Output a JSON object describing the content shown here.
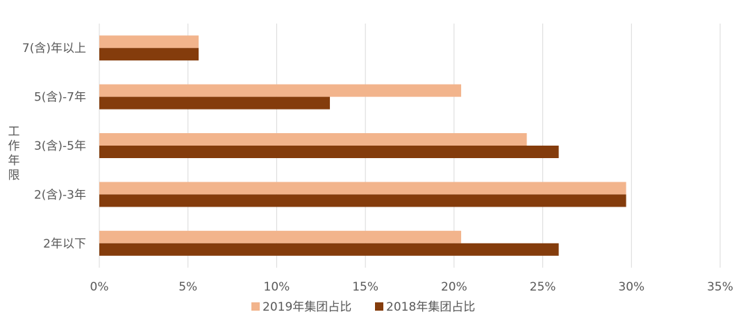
{
  "chart_data": {
    "type": "bar",
    "orientation": "horizontal",
    "categories": [
      "7(含)年以上",
      "5(含)-7年",
      "3(含)-5年",
      "2(含)-3年",
      "2年以下"
    ],
    "series": [
      {
        "name": "2019年集团占比",
        "values": [
          5.6,
          20.4,
          24.1,
          29.7,
          20.4
        ],
        "color": "#F2B48C"
      },
      {
        "name": "2018年集团占比",
        "values": [
          5.6,
          13.0,
          25.9,
          29.7,
          25.9
        ],
        "color": "#843C0C"
      }
    ],
    "xlabel": "",
    "ylabel": "工作年限",
    "xlim": [
      0,
      35
    ],
    "x_ticks": [
      "0%",
      "5%",
      "10%",
      "15%",
      "20%",
      "25%",
      "30%",
      "35%"
    ],
    "grid": "vertical",
    "legend_position": "bottom"
  }
}
